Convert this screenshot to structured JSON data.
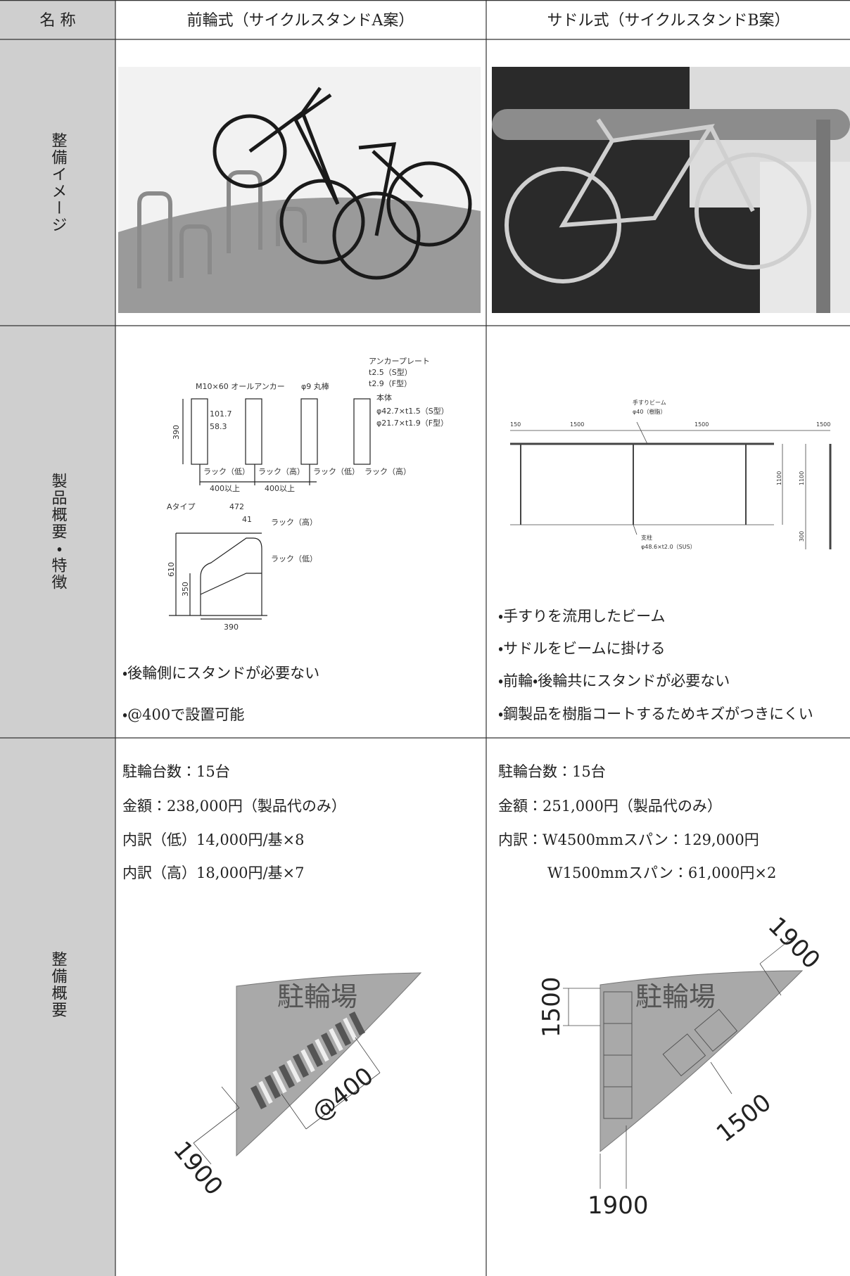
{
  "header": {
    "name": "名 称",
    "col_a": "前輪式（サイクルスタンドA案）",
    "col_b": "サドル式（サイクルスタンドB案）"
  },
  "rows": [
    {
      "label": "整備イメージ"
    },
    {
      "label": "製品概要・特徴",
      "a": {
        "diagram_labels": [
          "アンカープレート",
          "t2.5（S型）",
          "t2.9（F型）",
          "M10×60 オールアンカー",
          "φ9 丸棒",
          "本体",
          "φ42.7×t1.5（S型）",
          "φ21.7×t1.9（F型）",
          "390",
          "101.7",
          "58.3",
          "ラック（低）",
          "ラック（高）",
          "ラック（低）",
          "ラック（高）",
          "400以上",
          "400以上",
          "Aタイプ",
          "472",
          "41",
          "ラック（高）",
          "ラック（低）",
          "610",
          "350",
          "390"
        ],
        "bullets": [
          "・後輪側にスタンドが必要ない",
          "・@400で設置可能"
        ]
      },
      "b": {
        "diagram_labels": [
          "手すりビーム",
          "φ40（樹脂）",
          "150",
          "1500",
          "1500",
          "1500",
          "1100",
          "1100",
          "300",
          "支柱",
          "φ48.6×t2.0（SUS）"
        ],
        "bullets": [
          "・手すりを流用したビーム",
          "・サドルをビームに掛ける",
          "・前輪・後輪共にスタンドが必要ない",
          "・鋼製品を樹脂コートするためキズがつきにくい"
        ]
      }
    },
    {
      "label": "整備概要",
      "a": {
        "lines": [
          "駐輪台数：15台",
          "金額：238,000円（製品代のみ）",
          "内訳（低）14,000円/基×8",
          "内訳（高）18,000円/基×7"
        ],
        "plan_title": "駐輪場",
        "plan_labels": [
          "1900",
          "@400"
        ]
      },
      "b": {
        "lines": [
          "駐輪台数：15台",
          "金額：251,000円（製品代のみ）",
          "内訳：W4500mmスパン：129,000円",
          "W1500mmスパン：61,000円×2"
        ],
        "plan_title": "駐輪場",
        "plan_labels": [
          "1900",
          "1500",
          "1500",
          "1900"
        ]
      }
    }
  ]
}
